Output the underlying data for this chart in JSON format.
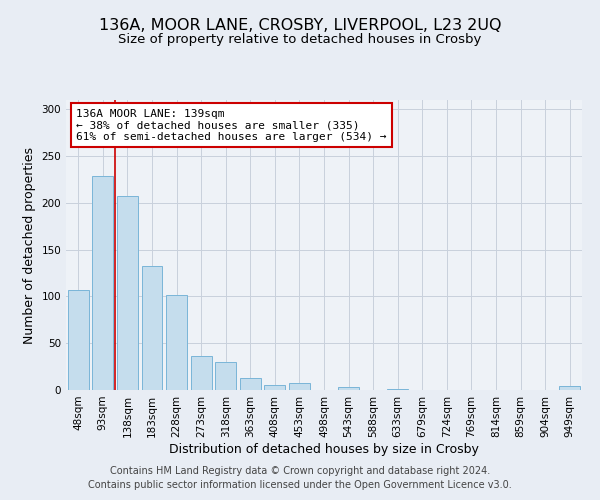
{
  "title1": "136A, MOOR LANE, CROSBY, LIVERPOOL, L23 2UQ",
  "title2": "Size of property relative to detached houses in Crosby",
  "xlabel": "Distribution of detached houses by size in Crosby",
  "ylabel": "Number of detached properties",
  "bar_labels": [
    "48sqm",
    "93sqm",
    "138sqm",
    "183sqm",
    "228sqm",
    "273sqm",
    "318sqm",
    "363sqm",
    "408sqm",
    "453sqm",
    "498sqm",
    "543sqm",
    "588sqm",
    "633sqm",
    "679sqm",
    "724sqm",
    "769sqm",
    "814sqm",
    "859sqm",
    "904sqm",
    "949sqm"
  ],
  "bar_values": [
    107,
    229,
    207,
    133,
    102,
    36,
    30,
    13,
    5,
    8,
    0,
    3,
    0,
    1,
    0,
    0,
    0,
    0,
    0,
    0,
    4
  ],
  "bar_color": "#c5dded",
  "bar_edge_color": "#7ab5d8",
  "vline_color": "#cc0000",
  "annotation_text": "136A MOOR LANE: 139sqm\n← 38% of detached houses are smaller (335)\n61% of semi-detached houses are larger (534) →",
  "annotation_box_color": "#ffffff",
  "annotation_box_edge": "#cc0000",
  "ylim": [
    0,
    310
  ],
  "yticks": [
    0,
    50,
    100,
    150,
    200,
    250,
    300
  ],
  "bg_color": "#e8edf4",
  "plot_bg_color": "#eef2f7",
  "grid_color": "#c8d0dc",
  "footer": "Contains HM Land Registry data © Crown copyright and database right 2024.\nContains public sector information licensed under the Open Government Licence v3.0.",
  "title1_fontsize": 11.5,
  "title2_fontsize": 9.5,
  "xlabel_fontsize": 9,
  "ylabel_fontsize": 9,
  "tick_fontsize": 7.5,
  "annotation_fontsize": 8,
  "footer_fontsize": 7
}
